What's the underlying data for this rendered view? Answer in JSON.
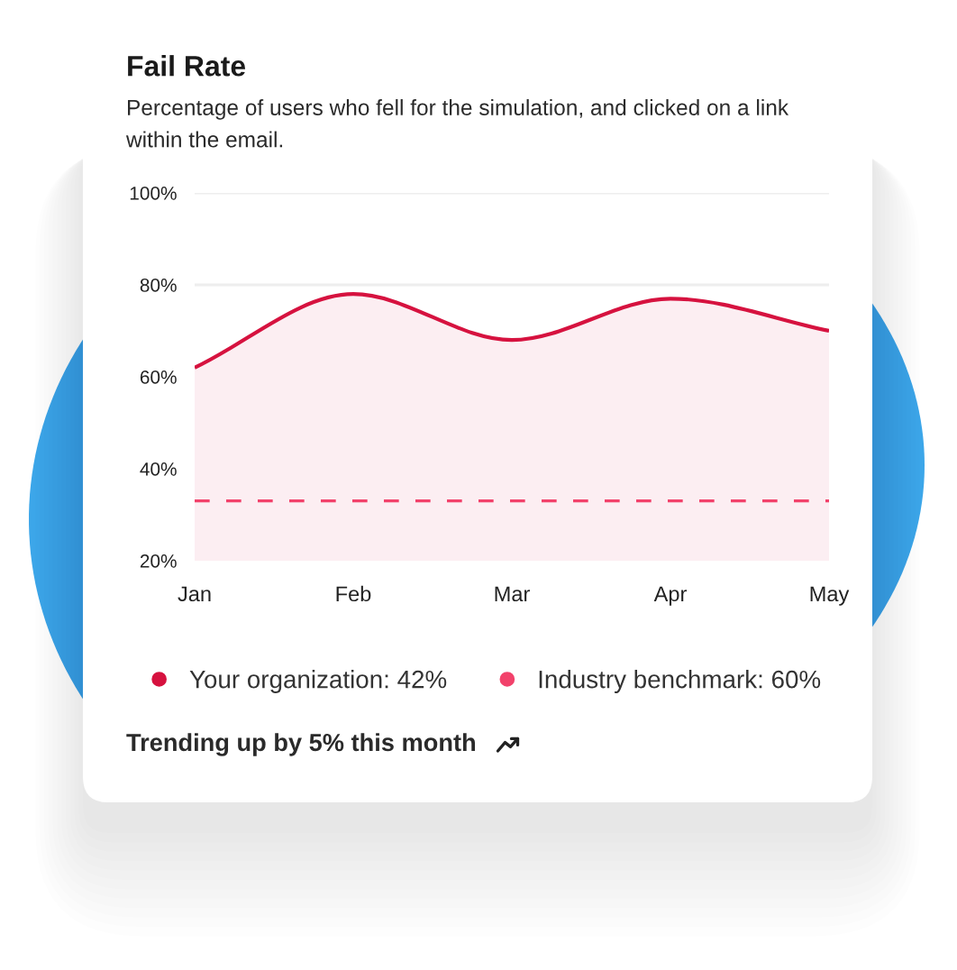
{
  "chart_data": {
    "type": "area",
    "title": "Fail Rate",
    "subtitle": "Percentage of users who fell for the simulation, and clicked on a link within the email.",
    "categories": [
      "Jan",
      "Feb",
      "Mar",
      "Apr",
      "May"
    ],
    "series": [
      {
        "name": "Your organization: 42%",
        "color": "#d6123f",
        "values": [
          62,
          78,
          68,
          77,
          70
        ]
      },
      {
        "name": "Industry benchmark: 60%",
        "type": "line",
        "line_style": "dashed",
        "color": "#f2426b",
        "values": [
          33,
          33,
          33,
          33,
          33
        ]
      }
    ],
    "ylim": [
      20,
      100
    ],
    "yticks": [
      {
        "value": 20,
        "label": "20%"
      },
      {
        "value": 40,
        "label": "40%"
      },
      {
        "value": 60,
        "label": "60%"
      },
      {
        "value": 80,
        "label": "80%"
      },
      {
        "value": 100,
        "label": "100%"
      }
    ],
    "grid": "y",
    "legend": "bottom",
    "annotations": [
      "Trending up by 5% this month"
    ]
  }
}
